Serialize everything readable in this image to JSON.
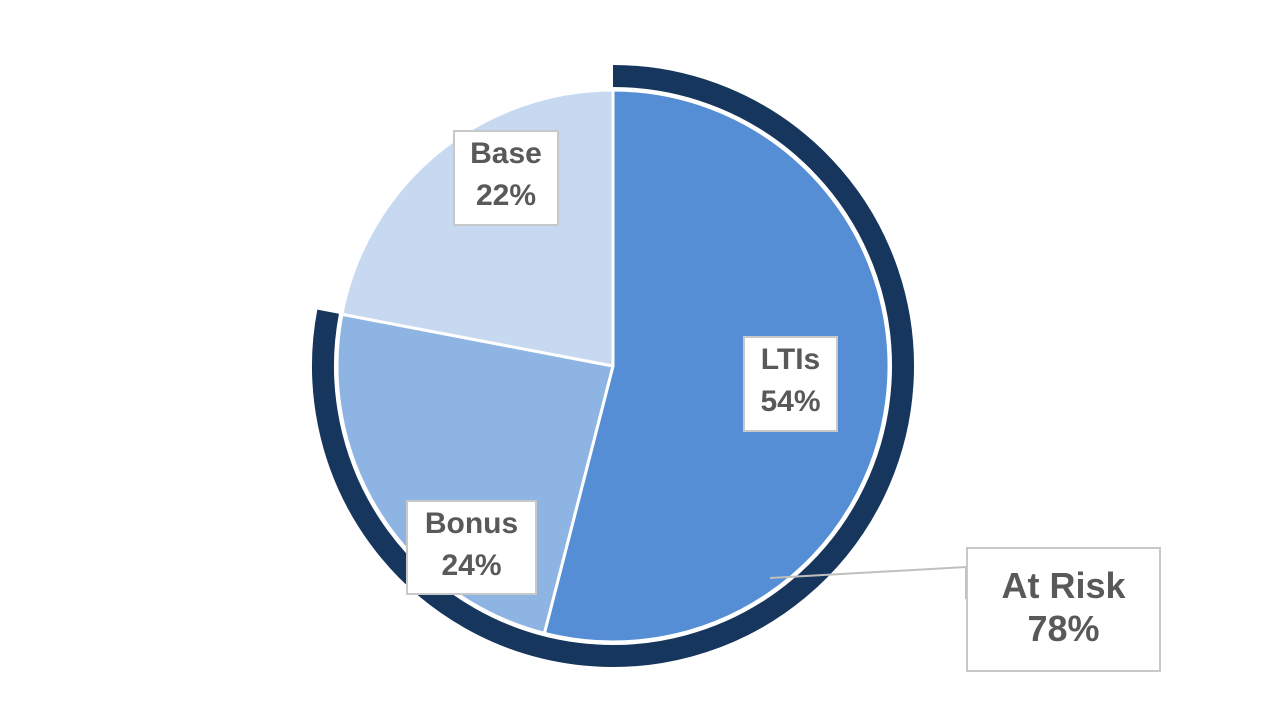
{
  "chart_data": {
    "type": "pie",
    "slices": [
      {
        "label": "LTIs",
        "percent_label": "54%",
        "value": 54,
        "color": "#558ed5"
      },
      {
        "label": "Bonus",
        "percent_label": "24%",
        "value": 24,
        "color": "#8eb4e3"
      },
      {
        "label": "Base",
        "percent_label": "22%",
        "value": 22,
        "color": "#c6d9f1"
      }
    ],
    "group": {
      "label": "At Risk",
      "percent_label": "78%",
      "value": 78,
      "color": "#17365d",
      "members": [
        "LTIs",
        "Bonus"
      ]
    },
    "title": "",
    "legend": "none"
  }
}
